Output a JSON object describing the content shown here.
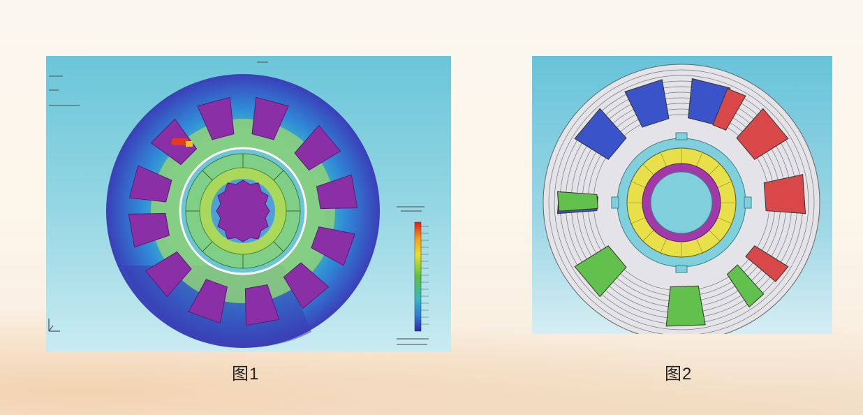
{
  "captions": {
    "fig1": "图1",
    "fig2": "图2"
  },
  "colors": {
    "magnet": "#8a2fa6",
    "coil_blue": "#3a53c8",
    "coil_red": "#d94848",
    "coil_green": "#62c04d",
    "rotor_yellow": "#e8e048",
    "teal": "#7fd0dc"
  }
}
